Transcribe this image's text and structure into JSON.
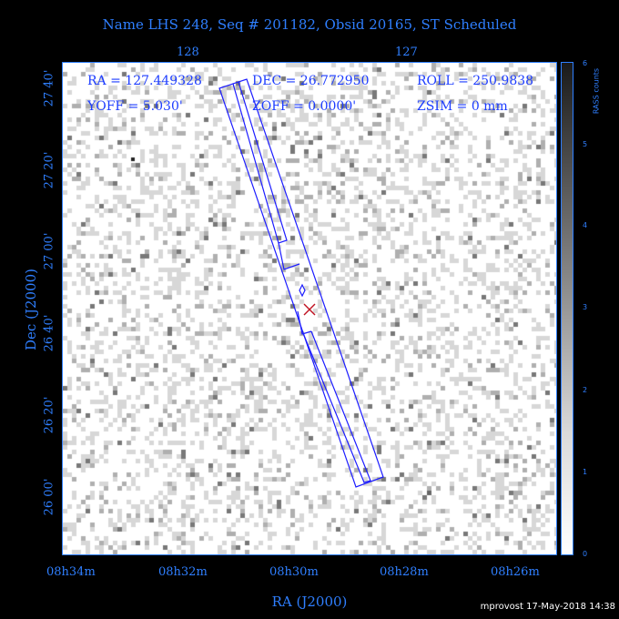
{
  "title": "Name LHS 248, Seq # 201182, Obsid 20165, ST Scheduled",
  "info": {
    "ra": "RA = 127.449328",
    "dec": "DEC = 26.772950",
    "roll": "ROLL = 250.9838",
    "yoff": "YOFF =    5.030'",
    "zoff": "ZOFF =  0.0000'",
    "zsim": "ZSIM = 0 mm"
  },
  "footer": "mprovost 17-May-2018 14:38",
  "colorbar": {
    "label": "RASS counts",
    "ticks": [
      "6",
      "5",
      "4",
      "3",
      "2",
      "1",
      "0"
    ]
  },
  "colors": {
    "axis": "#2f7fff",
    "info": "#1c3cff",
    "footprint": "#1c1cff",
    "aimpoint": "#c01020"
  },
  "chart_data": {
    "type": "sky-image",
    "title": "Name LHS 248, Seq # 201182, Obsid 20165, ST Scheduled",
    "xlabel": "RA (J2000)",
    "ylabel": "Dec (J2000)",
    "x_ticks": [
      "08h34m",
      "08h32m",
      "08h30m",
      "08h28m",
      "08h26m"
    ],
    "y_ticks": [
      "26 00'",
      "26 20'",
      "26 40'",
      "27 00'",
      "27 20'",
      "27 40'"
    ],
    "top_ticks": [
      "128",
      "127"
    ],
    "colorbar_range": [
      0,
      6
    ],
    "pointing": {
      "ra": 127.449328,
      "dec": 26.77295,
      "roll": 250.9838
    },
    "grid": false
  }
}
